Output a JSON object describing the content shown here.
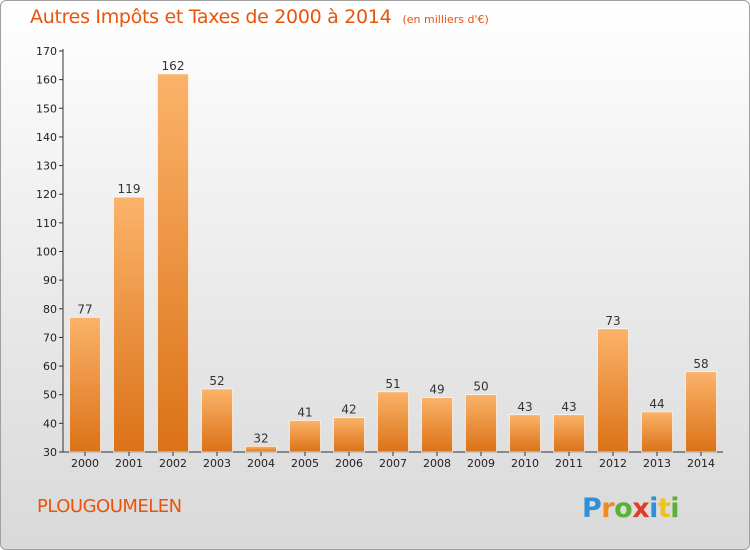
{
  "chart_data": {
    "type": "bar",
    "title": "Autres Impôts et Taxes de 2000 à 2014",
    "subtitle": "(en milliers d'€)",
    "categories": [
      "2000",
      "2001",
      "2002",
      "2003",
      "2004",
      "2005",
      "2006",
      "2007",
      "2008",
      "2009",
      "2010",
      "2011",
      "2012",
      "2013",
      "2014"
    ],
    "values": [
      77,
      119,
      162,
      52,
      32,
      41,
      42,
      51,
      49,
      50,
      43,
      43,
      73,
      44,
      58
    ],
    "ylim": [
      30,
      170
    ],
    "yticks": [
      30,
      40,
      50,
      60,
      70,
      80,
      90,
      100,
      110,
      120,
      130,
      140,
      150,
      160,
      170
    ],
    "grid": false,
    "bar_color": "#f0902a"
  },
  "footer": {
    "place": "PLOUGOUMELEN",
    "brand": "Proxiti"
  }
}
